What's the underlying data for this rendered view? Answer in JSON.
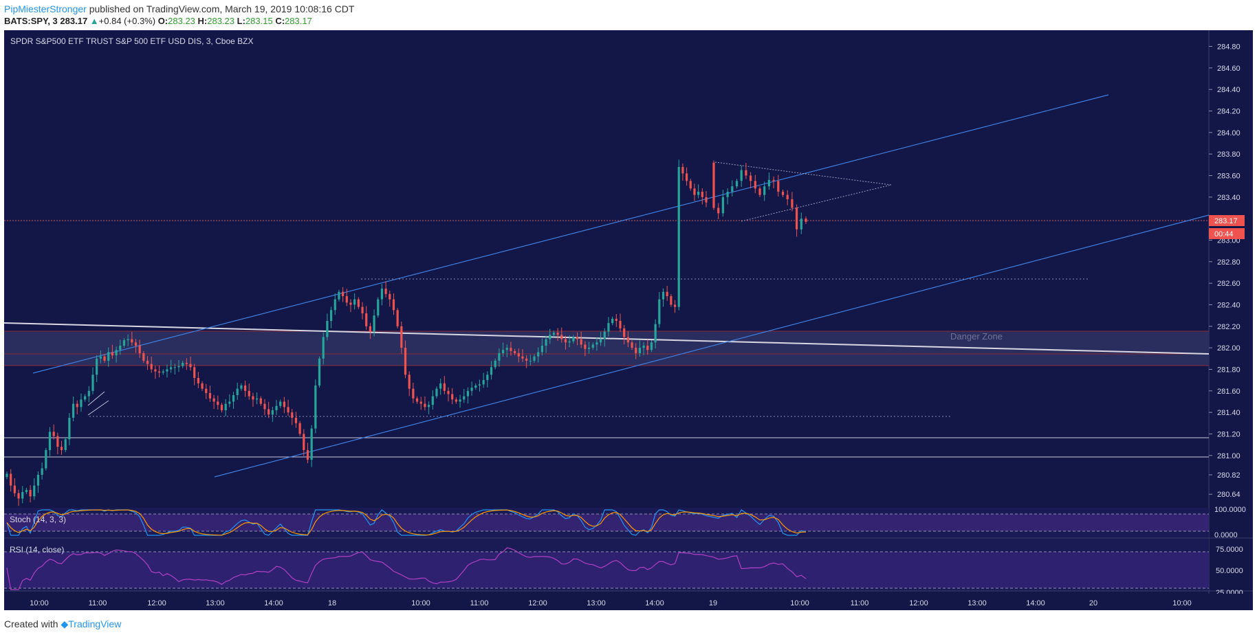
{
  "header": {
    "author": "PipMiesterStronger",
    "published_text": "published on TradingView.com, March 19, 2019 10:08:16 CDT",
    "symbol": "BATS:SPY, 3",
    "last": "283.17",
    "change": "+0.84 (+0.3%)",
    "open_label": "O:",
    "open": "283.23",
    "high_label": "H:",
    "high": "283.23",
    "low_label": "L:",
    "low": "283.15",
    "close_label": "C:",
    "close": "283.17"
  },
  "footer": {
    "created_with": "Created with",
    "brand": "TradingView"
  },
  "chart_data": {
    "type": "candlestick",
    "title": "SPDR S&P500 ETF TRUST S&P 500 ETF USD DIS, 3, Cboe BZX",
    "price_axis": [
      "284.80",
      "284.60",
      "284.40",
      "284.20",
      "284.00",
      "283.80",
      "283.60",
      "283.40",
      "283.00",
      "282.80",
      "282.60",
      "282.40",
      "282.20",
      "282.00",
      "281.80",
      "281.60",
      "281.40",
      "281.20",
      "281.00",
      "280.82",
      "280.64"
    ],
    "ylim": [
      280.52,
      284.95
    ],
    "last_price_label": "283.17",
    "countdown_label": "00:44",
    "time_axis": [
      "10:00",
      "11:00",
      "12:00",
      "13:00",
      "14:00",
      "18",
      "10:00",
      "11:00",
      "12:00",
      "13:00",
      "14:00",
      "19",
      "10:00",
      "11:00",
      "12:00",
      "13:00",
      "14:00",
      "20",
      "10:00"
    ],
    "danger_zone_label": "Danger Zone",
    "danger_zone": [
      281.83,
      282.16
    ],
    "horizontal_levels": [
      281.18,
      280.99
    ],
    "dotted_levels": [
      282.64,
      281.36,
      283.17
    ],
    "closes": [
      280.83,
      280.72,
      280.65,
      280.6,
      280.66,
      280.68,
      280.62,
      280.72,
      280.82,
      280.88,
      281.05,
      281.22,
      281.18,
      281.08,
      281.05,
      281.15,
      281.35,
      281.48,
      281.45,
      281.52,
      281.55,
      281.6,
      281.75,
      281.9,
      281.92,
      281.88,
      281.96,
      281.93,
      281.98,
      282.02,
      282.07,
      282.08,
      282.05,
      282.02,
      281.95,
      281.88,
      281.85,
      281.8,
      281.78,
      281.77,
      281.78,
      281.8,
      281.82,
      281.82,
      281.83,
      281.86,
      281.85,
      281.82,
      281.72,
      281.67,
      281.62,
      281.58,
      281.53,
      281.5,
      281.47,
      281.42,
      281.48,
      281.5,
      281.56,
      281.62,
      281.65,
      281.6,
      281.55,
      281.52,
      281.53,
      281.48,
      281.43,
      281.38,
      281.42,
      281.46,
      281.5,
      281.45,
      281.4,
      281.35,
      281.3,
      281.2,
      281.05,
      280.96,
      281.25,
      281.65,
      281.9,
      282.1,
      282.25,
      282.35,
      282.45,
      282.52,
      282.48,
      282.42,
      282.4,
      282.45,
      282.38,
      282.32,
      282.2,
      282.15,
      282.3,
      282.45,
      282.55,
      282.5,
      282.45,
      282.35,
      282.2,
      282.0,
      281.75,
      281.62,
      281.53,
      281.5,
      281.48,
      281.45,
      281.47,
      281.55,
      281.62,
      281.67,
      281.6,
      281.57,
      281.52,
      281.5,
      281.52,
      281.55,
      281.6,
      281.63,
      281.65,
      281.66,
      281.7,
      281.75,
      281.82,
      281.88,
      281.95,
      281.98,
      282.0,
      281.97,
      281.95,
      281.92,
      281.9,
      281.88,
      281.88,
      281.92,
      281.96,
      282.02,
      282.08,
      282.12,
      282.14,
      282.12,
      282.08,
      282.05,
      282.06,
      282.1,
      282.08,
      282.03,
      281.99,
      282.0,
      282.03,
      282.05,
      282.08,
      282.15,
      282.23,
      282.27,
      282.25,
      282.18,
      282.1,
      282.05,
      282.0,
      281.95,
      282.0,
      282.02,
      281.98,
      282.05,
      282.22,
      282.45,
      282.52,
      282.48,
      282.4,
      282.38,
      283.68,
      283.62,
      283.55,
      283.48,
      283.42,
      283.45,
      283.4,
      283.35,
      283.3,
      283.25,
      283.4,
      283.45,
      283.5,
      283.55,
      283.65,
      283.6,
      283.55,
      283.48,
      283.42,
      283.5,
      283.56,
      283.55,
      283.45,
      283.42,
      283.38,
      283.3,
      283.1,
      283.2,
      283.17
    ]
  }
}
